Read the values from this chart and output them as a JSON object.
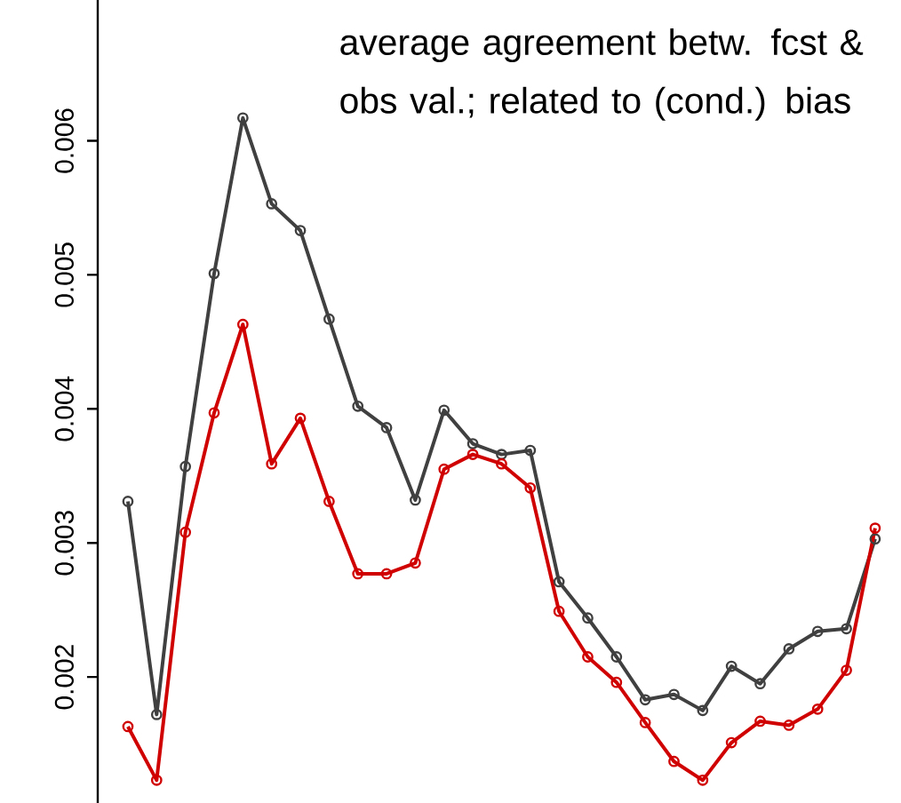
{
  "chart_data": {
    "type": "line",
    "categories": [
      null,
      null,
      null,
      null,
      null,
      null,
      null,
      null,
      null,
      null,
      null,
      null,
      null,
      null,
      null,
      null,
      null,
      null,
      null,
      null,
      null,
      null,
      null,
      null,
      null,
      null,
      null
    ],
    "series": [
      {
        "color": "#404040",
        "values": [
          0.00331,
          0.00172,
          0.00357,
          0.00501,
          0.00617,
          0.00553,
          0.00533,
          0.00467,
          0.00402,
          0.00386,
          0.00332,
          0.00399,
          0.00374,
          0.00366,
          0.00369,
          0.00271,
          0.00244,
          0.00215,
          0.00183,
          0.00187,
          0.00175,
          0.00208,
          0.00195,
          0.00221,
          0.00234,
          0.00236,
          0.00303
        ]
      },
      {
        "color": "#d00000",
        "values": [
          0.00163,
          0.00123,
          0.00308,
          0.00397,
          0.00463,
          0.00359,
          0.00393,
          0.00331,
          0.00277,
          0.00277,
          0.00285,
          0.00355,
          0.00366,
          0.00359,
          0.00341,
          0.00249,
          0.00215,
          0.00196,
          0.00166,
          0.00137,
          0.00123,
          0.00151,
          0.00167,
          0.00164,
          0.00176,
          0.00205,
          0.00311
        ]
      }
    ],
    "ylim": [
      0.00106,
      0.00705
    ],
    "yticks": [
      0.002,
      0.003,
      0.004,
      0.005,
      0.006
    ],
    "annotations": [
      "average agreement betw. fcst  & obs val.; related to (cond.) bias"
    ],
    "marker": "circle",
    "line_style": "solid",
    "grid": false,
    "tick_labels": "y"
  }
}
